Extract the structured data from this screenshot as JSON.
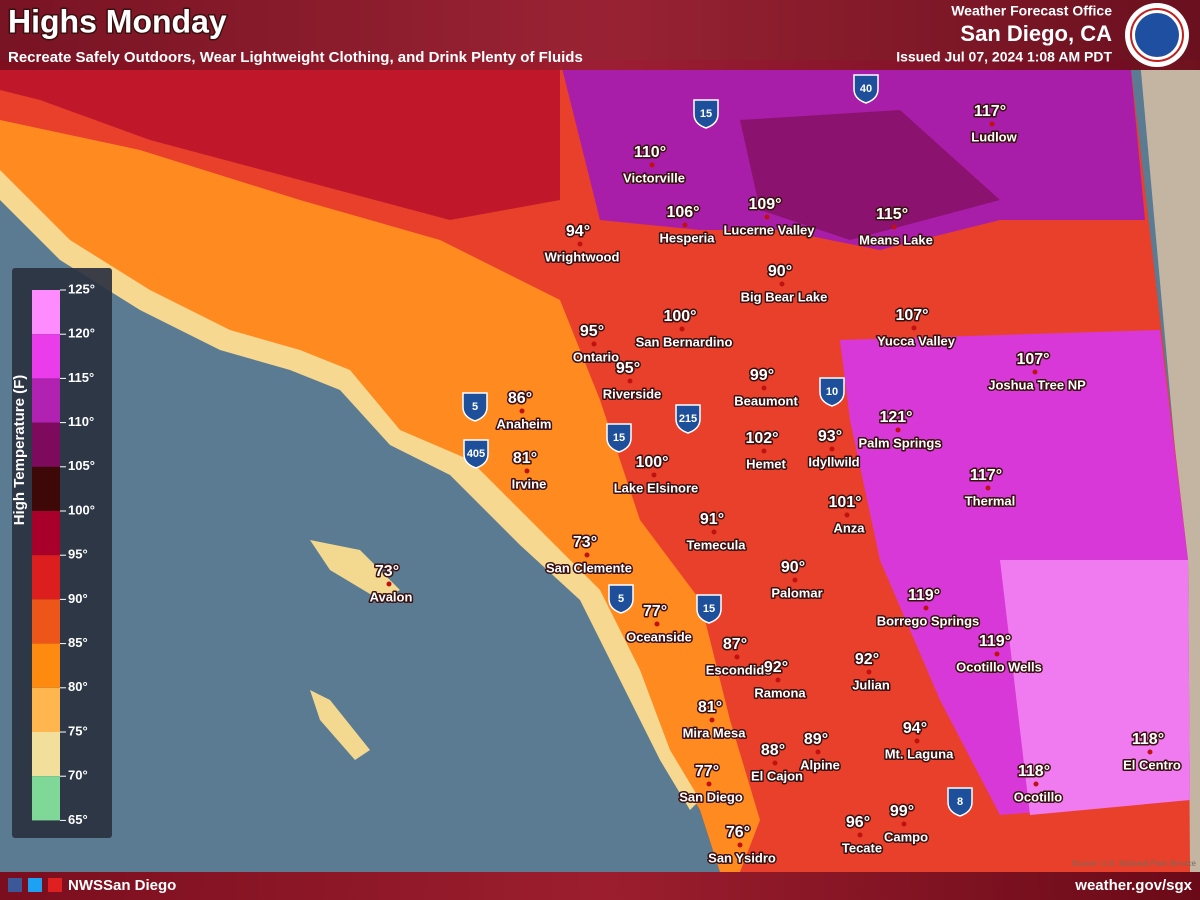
{
  "header": {
    "title": "Highs Monday",
    "subtitle": "Recreate Safely Outdoors, Wear Lightweight Clothing, and Drink Plenty of Fluids",
    "office_label": "Weather Forecast Office",
    "office": "San Diego, CA",
    "issued": "Issued Jul 07, 2024 1:08 AM PDT"
  },
  "legend": {
    "title": "High Temperature (F)",
    "ticks": [
      "125°",
      "120°",
      "115°",
      "110°",
      "105°",
      "100°",
      "95°",
      "90°",
      "85°",
      "80°",
      "75°",
      "70°",
      "65°"
    ],
    "colors": [
      "#ff8cff",
      "#ea3cea",
      "#b222b2",
      "#7e0a5e",
      "#3e0808",
      "#a8002a",
      "#dc1e1e",
      "#ee5518",
      "#ff8a10",
      "#ffb64e",
      "#f3df9c",
      "#80d898"
    ]
  },
  "cities": [
    {
      "name": "Ludlow",
      "temp": "117°"
    },
    {
      "name": "Victorville",
      "temp": "110°"
    },
    {
      "name": "Hesperia",
      "temp": "106°"
    },
    {
      "name": "Lucerne Valley",
      "temp": "109°"
    },
    {
      "name": "Means Lake",
      "temp": "115°"
    },
    {
      "name": "Wrightwood",
      "temp": "94°"
    },
    {
      "name": "Big Bear Lake",
      "temp": "90°"
    },
    {
      "name": "Ontario",
      "temp": "95°"
    },
    {
      "name": "San Bernardino",
      "temp": "100°"
    },
    {
      "name": "Yucca Valley",
      "temp": "107°"
    },
    {
      "name": "Joshua Tree NP",
      "temp": "107°"
    },
    {
      "name": "Riverside",
      "temp": "95°"
    },
    {
      "name": "Beaumont",
      "temp": "99°"
    },
    {
      "name": "Anaheim",
      "temp": "86°"
    },
    {
      "name": "Palm Springs",
      "temp": "121°"
    },
    {
      "name": "Idyllwild",
      "temp": "93°"
    },
    {
      "name": "Hemet",
      "temp": "102°"
    },
    {
      "name": "Irvine",
      "temp": "81°"
    },
    {
      "name": "Lake Elsinore",
      "temp": "100°"
    },
    {
      "name": "Thermal",
      "temp": "117°"
    },
    {
      "name": "Anza",
      "temp": "101°"
    },
    {
      "name": "Temecula",
      "temp": "91°"
    },
    {
      "name": "San Clemente",
      "temp": "73°"
    },
    {
      "name": "Avalon",
      "temp": "73°"
    },
    {
      "name": "Palomar",
      "temp": "90°"
    },
    {
      "name": "Borrego Springs",
      "temp": "119°"
    },
    {
      "name": "Oceanside",
      "temp": "77°"
    },
    {
      "name": "Ocotillo Wells",
      "temp": "119°"
    },
    {
      "name": "Escondido",
      "temp": "87°"
    },
    {
      "name": "Ramona",
      "temp": "92°"
    },
    {
      "name": "Julian",
      "temp": "92°"
    },
    {
      "name": "Mira Mesa",
      "temp": "81°"
    },
    {
      "name": "Mt. Laguna",
      "temp": "94°"
    },
    {
      "name": "El Cajon",
      "temp": "88°"
    },
    {
      "name": "Alpine",
      "temp": "89°"
    },
    {
      "name": "El Centro",
      "temp": "118°"
    },
    {
      "name": "San Diego",
      "temp": "77°"
    },
    {
      "name": "Ocotillo",
      "temp": "118°"
    },
    {
      "name": "Campo",
      "temp": "99°"
    },
    {
      "name": "Tecate",
      "temp": "96°"
    },
    {
      "name": "San Ysidro",
      "temp": "76°"
    }
  ],
  "highways": [
    "15",
    "40",
    "5",
    "405",
    "15",
    "215",
    "10",
    "5",
    "15",
    "8"
  ],
  "source": "Source: U.S. National Park Service",
  "footer": {
    "social": "NWSSan Diego",
    "website": "weather.gov/sgx"
  }
}
